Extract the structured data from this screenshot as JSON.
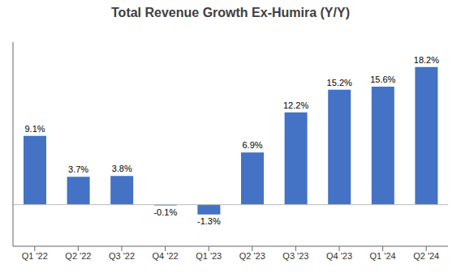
{
  "chart_data": {
    "type": "bar",
    "title": "Total Revenue Growth Ex-Humira (Y/Y)",
    "categories": [
      "Q1 '22",
      "Q2 '22",
      "Q3 '22",
      "Q4 '22",
      "Q1 '23",
      "Q2 '23",
      "Q3 '23",
      "Q4 '23",
      "Q1 '24",
      "Q2 '24"
    ],
    "values": [
      9.1,
      3.7,
      3.8,
      -0.1,
      -1.3,
      6.9,
      12.2,
      15.2,
      15.6,
      18.2
    ],
    "value_labels": [
      "9.1%",
      "3.7%",
      "3.8%",
      "-0.1%",
      "-1.3%",
      "6.9%",
      "12.2%",
      "15.2%",
      "15.6%",
      "18.2%"
    ],
    "color": "#4472C4",
    "ylim": [
      -5.5,
      21.5
    ],
    "grid": false,
    "data_labels": true,
    "tick_labels": "x"
  }
}
